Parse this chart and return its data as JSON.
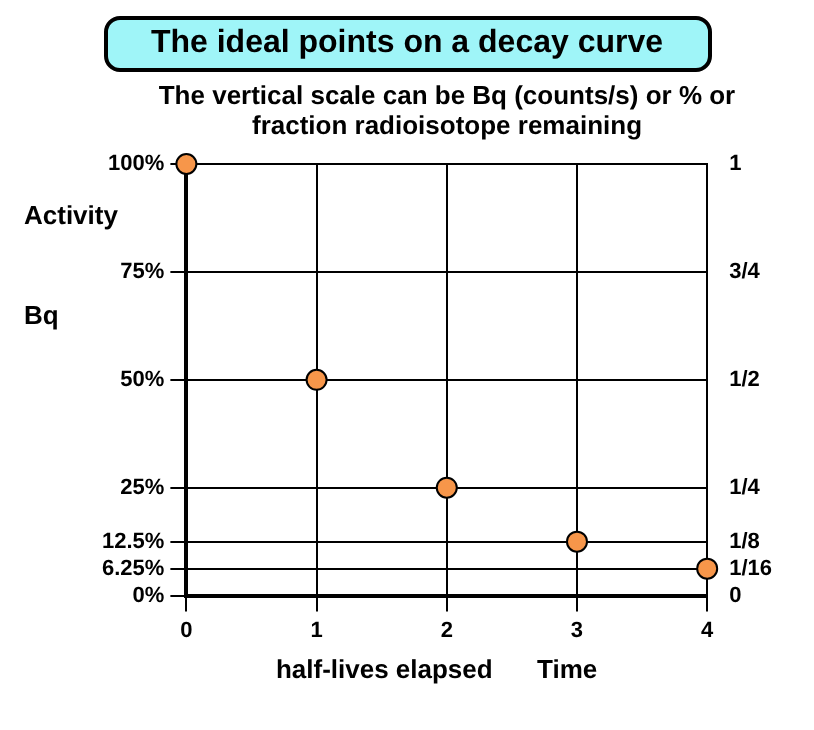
{
  "chart_data": {
    "type": "scatter",
    "title": "The ideal points on a decay curve",
    "subtitle": "The vertical scale can be Bq (counts/s) or % or fraction radioisotope remaining",
    "xlabel": "half-lives elapsed",
    "ylabel": "Activity Bq",
    "annotations": [
      "Time"
    ],
    "x": [
      0,
      1,
      2,
      3,
      4
    ],
    "series": [
      {
        "color": "#f7964a",
        "values": [
          100,
          50,
          25,
          12.5,
          6.25
        ]
      }
    ],
    "xlim": [
      0,
      4
    ],
    "xticks": [
      0,
      1,
      2,
      3,
      4
    ],
    "ylim": [
      0,
      100
    ],
    "yticks": [
      {
        "value": 0,
        "label": "0%"
      },
      {
        "value": 6.25,
        "label": "6.25%"
      },
      {
        "value": 12.5,
        "label": "12.5%"
      },
      {
        "value": 25,
        "label": "25%"
      },
      {
        "value": 50,
        "label": "50%"
      },
      {
        "value": 75,
        "label": "75%"
      },
      {
        "value": 100,
        "label": "100%"
      }
    ],
    "y2lim": [
      0,
      1
    ],
    "y2ticks": [
      0,
      {
        "value": 0.0625,
        "label": "1/16"
      },
      {
        "value": 0.125,
        "label": "1/8"
      },
      {
        "value": 0.25,
        "label": "1/4"
      },
      {
        "value": 0.5,
        "label": "1/2"
      },
      {
        "value": 0.75,
        "label": "3/4"
      },
      1
    ],
    "grid": true,
    "marker": "circle",
    "legend": false
  }
}
